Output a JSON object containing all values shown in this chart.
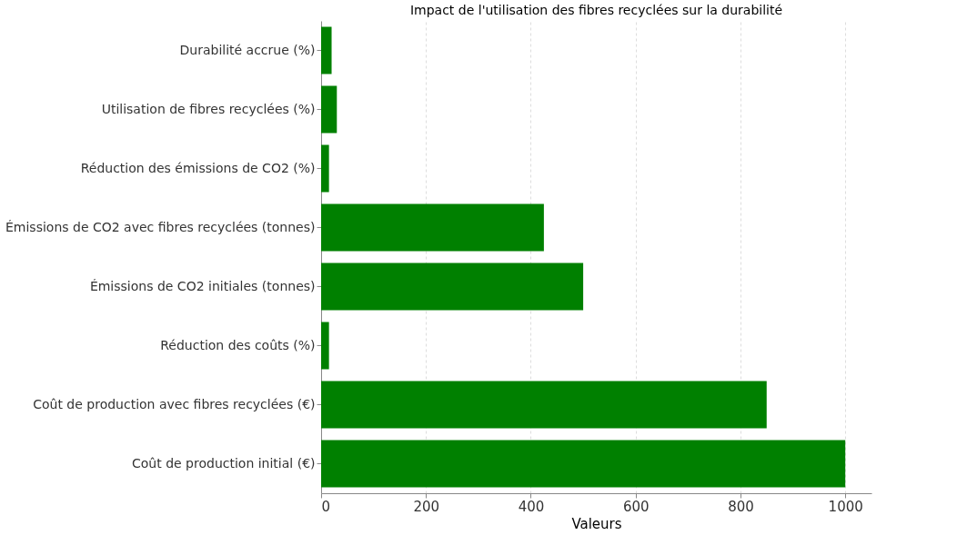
{
  "chart_data": {
    "type": "bar",
    "orientation": "horizontal",
    "title": "Impact de l'utilisation des fibres recyclées sur la durabilité",
    "xlabel": "Valeurs",
    "categories": [
      "Durabilité accrue (%)",
      "Utilisation de fibres recyclées (%)",
      "Réduction des émissions de CO2 (%)",
      "Émissions de CO2 avec fibres recyclées (tonnes)",
      "Émissions de CO2 initiales (tonnes)",
      "Réduction des coûts (%)",
      "Coût de production avec fibres recyclées (€)",
      "Coût de production initial (€)"
    ],
    "values": [
      20,
      30,
      15,
      425,
      500,
      15,
      850,
      1000
    ],
    "color": "#008000",
    "xlim": [
      0,
      1050
    ],
    "xticks": [
      0,
      200,
      400,
      600,
      800,
      1000
    ],
    "grid": "x"
  }
}
